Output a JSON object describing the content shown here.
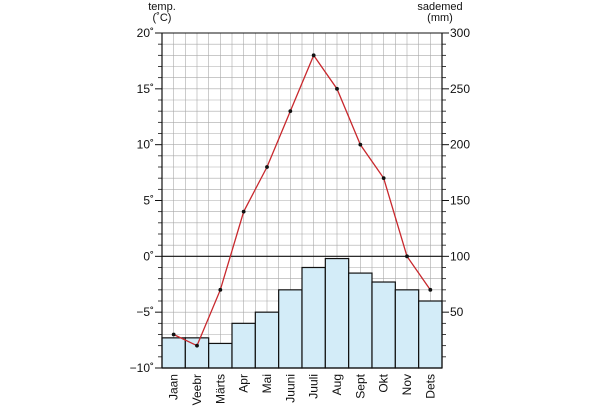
{
  "chart_data": {
    "type": "bar+line",
    "left_axis": {
      "title_line1": "temp.",
      "title_line2": "(˚C)",
      "range": [
        -10,
        20
      ],
      "ticks": [
        -10,
        -5,
        0,
        5,
        10,
        15,
        20
      ],
      "tick_labels": [
        "−10˚",
        "−5˚",
        "0˚",
        "5˚",
        "10˚",
        "15˚",
        "20˚"
      ]
    },
    "right_axis": {
      "title_line1": "sademed",
      "title_line2": "(mm)",
      "range": [
        0,
        300
      ],
      "ticks": [
        50,
        100,
        150,
        200,
        250,
        300
      ],
      "tick_labels": [
        "50",
        "100",
        "150",
        "200",
        "250",
        "300"
      ]
    },
    "categories": [
      "Jaan",
      "Veebr",
      "Märts",
      "Apr",
      "Mai",
      "Juuni",
      "Juuli",
      "Aug",
      "Sept",
      "Okt",
      "Nov",
      "Dets"
    ],
    "precipitation_mm": [
      27,
      27,
      22,
      40,
      50,
      70,
      90,
      98,
      85,
      77,
      70,
      60
    ],
    "temperature_c": [
      -7,
      -8,
      -3,
      4,
      8,
      13,
      18,
      15,
      10,
      7,
      0,
      -3
    ],
    "colors": {
      "bar_fill": "#d3ecf8",
      "bar_stroke": "#111111",
      "line": "#c8282d",
      "marker": "#111111",
      "grid": "#a9a9a9",
      "zero_line": "#111111"
    }
  }
}
